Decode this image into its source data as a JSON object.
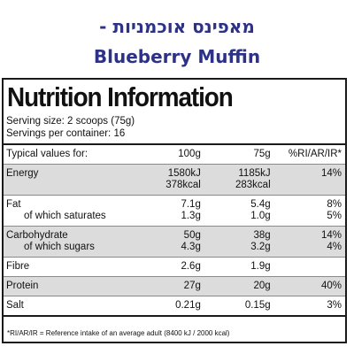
{
  "header": {
    "title_hebrew": "מאפינס אוכמניות -",
    "title_english": "Blueberry Muffin"
  },
  "nutrition": {
    "title": "Nutrition Information",
    "serving_size": "Serving size: 2 scoops (75g)",
    "servings_per_container": "Servings per container: 16",
    "columns": {
      "label": "Typical values for:",
      "per_100": "100g",
      "per_75": "75g",
      "ri": "%RI/AR/IR*"
    },
    "rows": [
      {
        "name": "Energy",
        "sub": "",
        "per_100": "1580kJ",
        "per_100_b": "378kcal",
        "per_75": "1185kJ",
        "per_75_b": "283kcal",
        "ri": "14%",
        "ri_b": ""
      },
      {
        "name": "Fat",
        "sub": "of which saturates",
        "per_100": "7.1g",
        "per_100_b": "1.3g",
        "per_75": "5.4g",
        "per_75_b": "1.0g",
        "ri": "8%",
        "ri_b": "5%"
      },
      {
        "name": "Carbohydrate",
        "sub": "of which sugars",
        "per_100": "50g",
        "per_100_b": "4.3g",
        "per_75": "38g",
        "per_75_b": "3.2g",
        "ri": "14%",
        "ri_b": "4%"
      },
      {
        "name": "Fibre",
        "per_100": "2.6g",
        "per_75": "1.9g",
        "ri": ""
      },
      {
        "name": "Protein",
        "per_100": "27g",
        "per_75": "20g",
        "ri": "40%"
      },
      {
        "name": "Salt",
        "per_100": "0.21g",
        "per_75": "0.15g",
        "ri": "3%"
      }
    ],
    "footnote": "*RI/AR/IR = Reference intake of an average adult (8400 kJ / 2000 kcal)"
  }
}
